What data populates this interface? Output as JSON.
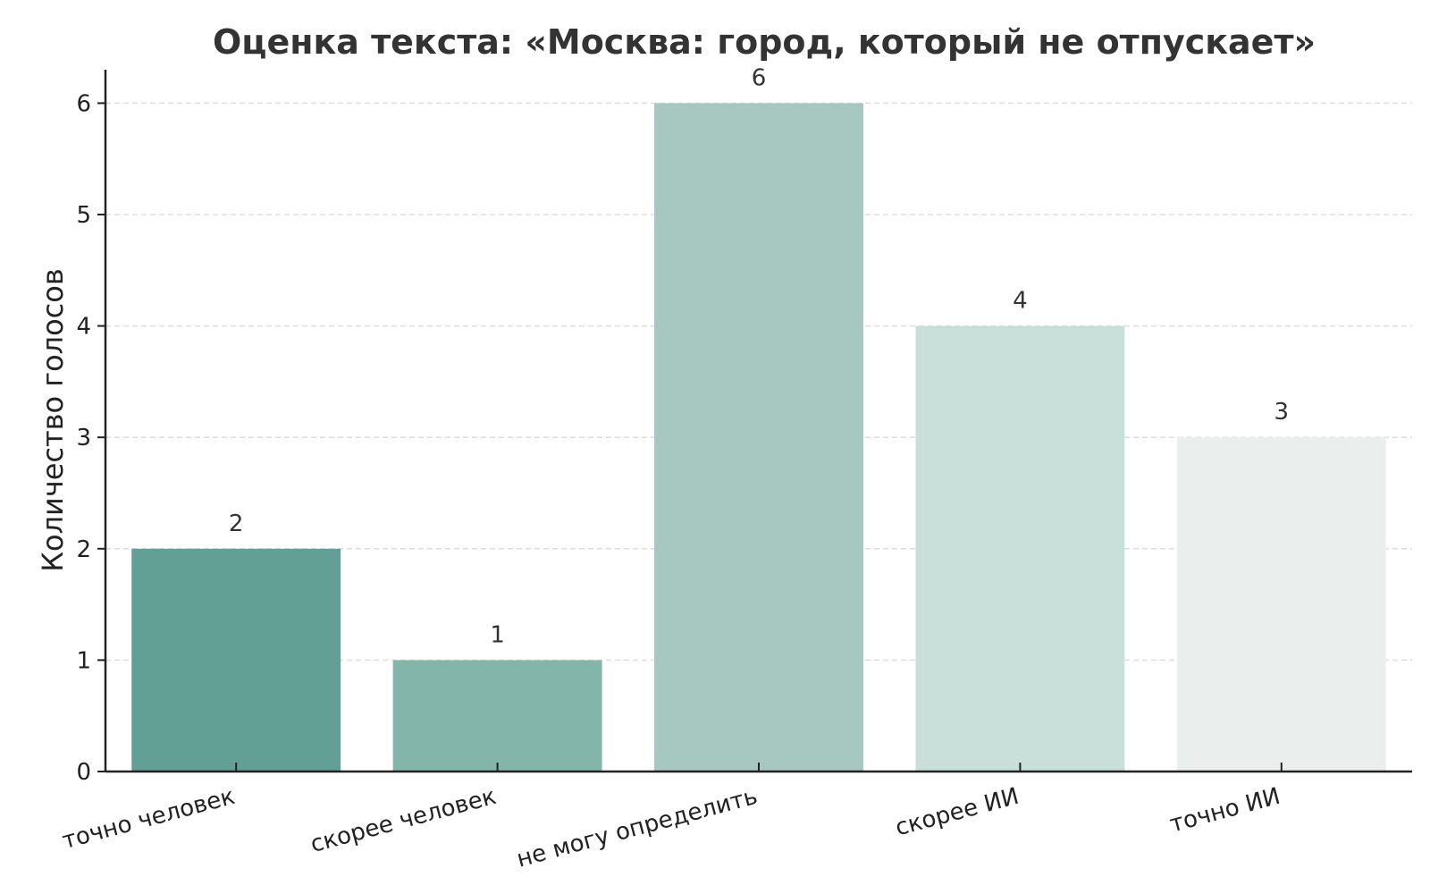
{
  "chart_data": {
    "type": "bar",
    "title": "Оценка текста: «Москва: город, который не отпускает»",
    "xlabel": "",
    "ylabel": "Количество голосов",
    "categories": [
      "точно человек",
      "скорее человек",
      "не могу определить",
      "скорее ИИ",
      "точно ИИ"
    ],
    "values": [
      2,
      1,
      6,
      4,
      3
    ],
    "ylim": [
      0,
      6.3
    ],
    "yticks": [
      0,
      1,
      2,
      3,
      4,
      5,
      6
    ],
    "grid": "horizontal-dashed",
    "colors": [
      "#629f94",
      "#84b5aa",
      "#a6c8c1",
      "#c9dfd9",
      "#eaefed"
    ],
    "data_labels": true
  }
}
